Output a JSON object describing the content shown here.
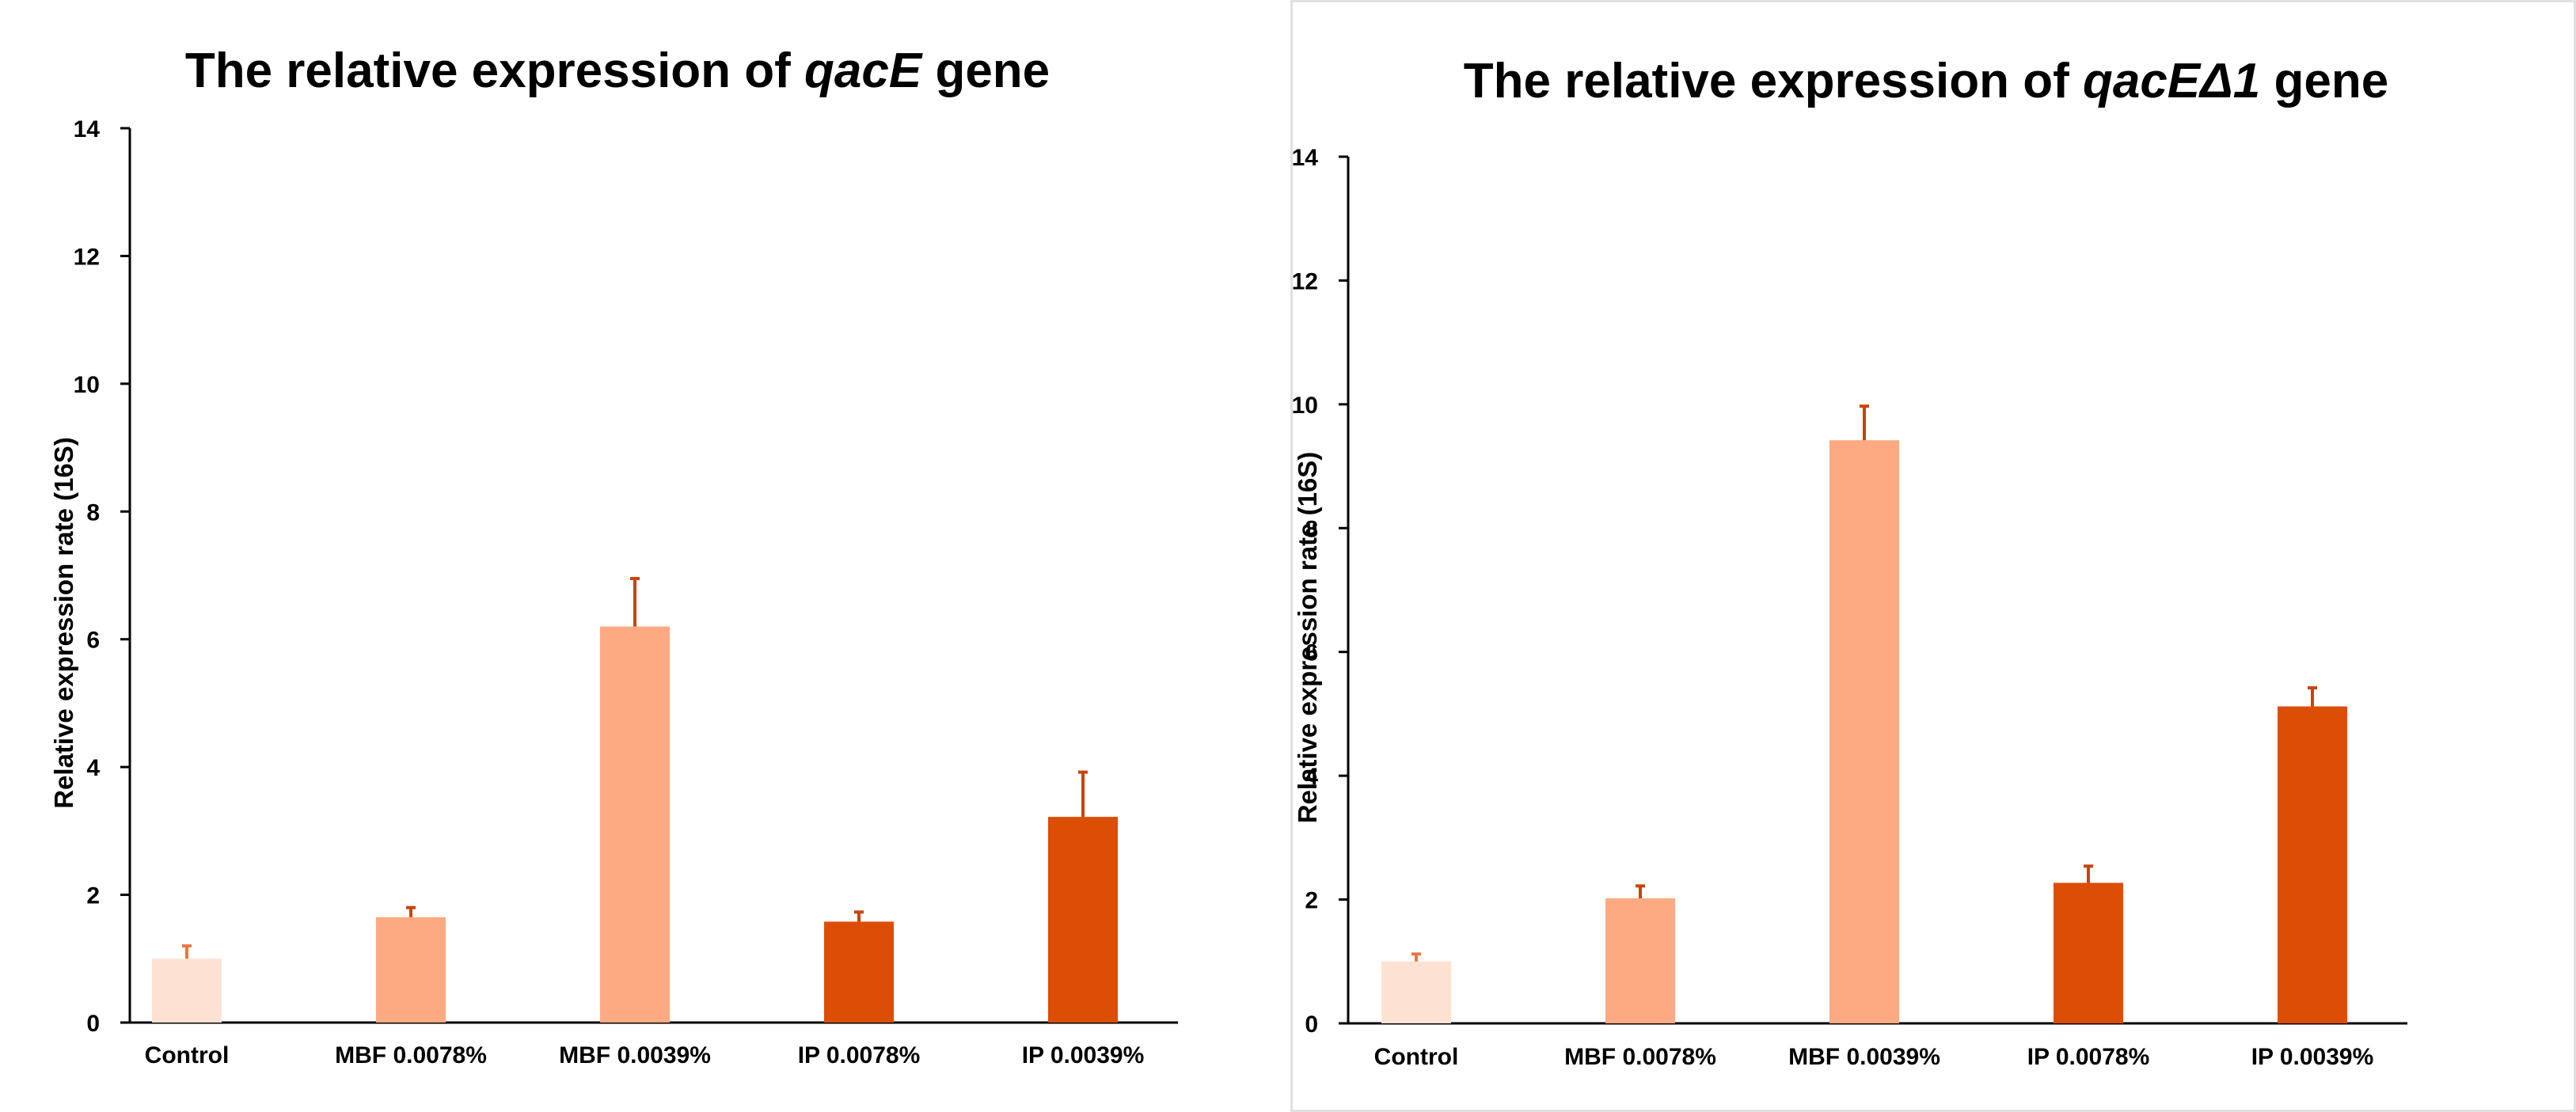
{
  "chart_data": [
    {
      "type": "bar",
      "title": "The relative expression of qacE gene",
      "title_parts": {
        "prefix": "The relative expression of ",
        "gene": "qacE",
        "suffix": " gene"
      },
      "xlabel": "",
      "ylabel": "Relative expression rate (16S)",
      "ylim": [
        0,
        14
      ],
      "yticks": [
        "0",
        "2",
        "4",
        "6",
        "8",
        "10",
        "12",
        "14"
      ],
      "categories": [
        "Control",
        "MBF 0.0078%",
        "MBF 0.0039%",
        "IP 0.0078%",
        "IP 0.0039%"
      ],
      "values": [
        1.0,
        1.65,
        6.2,
        1.58,
        3.22
      ],
      "errors": [
        0.2,
        0.15,
        0.75,
        0.15,
        0.7
      ],
      "colors": [
        "#fde2d3",
        "#fdaa82",
        "#fdaa82",
        "#dc4d06",
        "#dc4d06"
      ],
      "legend": "none",
      "grid": false
    },
    {
      "type": "bar",
      "title": "The relative expression of qacEΔ1 gene",
      "title_parts": {
        "prefix": "The relative expression of ",
        "gene": "qacEΔ1",
        "suffix": " gene"
      },
      "xlabel": "",
      "ylabel": "Relative expression rate (16S)",
      "ylim": [
        0,
        14
      ],
      "yticks": [
        "0",
        "2",
        "4",
        "6",
        "8",
        "10",
        "12",
        "14"
      ],
      "categories": [
        "Control",
        "MBF 0.0078%",
        "MBF 0.0039%",
        "IP 0.0078%",
        "IP 0.0039%"
      ],
      "values": [
        1.0,
        2.02,
        9.42,
        2.27,
        5.12
      ],
      "errors": [
        0.12,
        0.2,
        0.55,
        0.27,
        0.3
      ],
      "colors": [
        "#fde2d3",
        "#fdaa82",
        "#fdaa82",
        "#dc4d06",
        "#dc4d06"
      ],
      "legend": "none",
      "grid": false
    }
  ]
}
